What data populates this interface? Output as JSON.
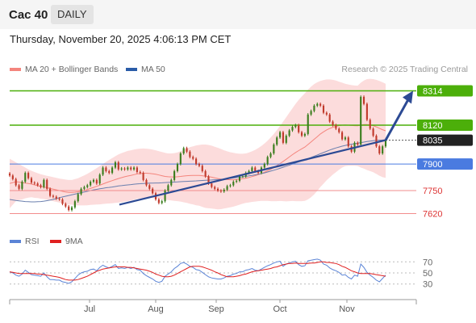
{
  "header": {
    "symbol": "Cac 40",
    "period": "DAILY"
  },
  "datetime": "Thursday, November 20, 2025 4:06:13 PM CET",
  "legend": {
    "ma_bb": {
      "label": "MA 20 + Bollinger Bands",
      "color": "#f4857d"
    },
    "ma50": {
      "label": "MA 50",
      "color": "#2a5ca8"
    },
    "credit": "Research © 2025 Trading Central"
  },
  "rsi_legend": {
    "rsi": {
      "label": "RSI",
      "color": "#5b84d6"
    },
    "ma9": {
      "label": "9MA",
      "color": "#e02020"
    }
  },
  "colors": {
    "resistance": "#4caf0a",
    "support": "#4a7be0",
    "minor_support": "#f28c8c",
    "current": "#222222",
    "trendline": "#2c4a94",
    "bollinger_fill": "#fcdcdc",
    "candle_up": "#3a7d1d",
    "candle_down": "#c0392b"
  },
  "chart_data": [
    {
      "type": "candlestick",
      "x_ticks": [
        "Jul",
        "Aug",
        "Sep",
        "Oct",
        "Nov"
      ],
      "ylim": [
        7540,
        8380
      ],
      "levels": [
        {
          "value": 8314,
          "label": "8314",
          "kind": "resistance"
        },
        {
          "value": 8120,
          "label": "8120",
          "kind": "resistance"
        },
        {
          "value": 8035,
          "label": "8035",
          "kind": "current"
        },
        {
          "value": 7900,
          "label": "7900",
          "kind": "support"
        },
        {
          "value": 7750,
          "label": "7750",
          "kind": "minor_support"
        },
        {
          "value": 7620,
          "label": "7620",
          "kind": "minor_support"
        }
      ],
      "closes": [
        7835,
        7815,
        7780,
        7760,
        7800,
        7850,
        7820,
        7795,
        7790,
        7780,
        7770,
        7810,
        7760,
        7720,
        7715,
        7705,
        7700,
        7675,
        7660,
        7640,
        7655,
        7690,
        7730,
        7760,
        7770,
        7780,
        7800,
        7810,
        7790,
        7840,
        7880,
        7860,
        7850,
        7880,
        7910,
        7870,
        7875,
        7870,
        7880,
        7870,
        7880,
        7855,
        7850,
        7810,
        7780,
        7760,
        7735,
        7700,
        7680,
        7690,
        7750,
        7780,
        7810,
        7860,
        7900,
        7960,
        7990,
        7970,
        7940,
        7930,
        7900,
        7890,
        7860,
        7830,
        7790,
        7770,
        7760,
        7750,
        7745,
        7755,
        7775,
        7780,
        7800,
        7805,
        7830,
        7830,
        7850,
        7860,
        7880,
        7860,
        7850,
        7880,
        7900,
        7940,
        7960,
        8010,
        8050,
        8080,
        8020,
        8060,
        8090,
        8110,
        8120,
        8080,
        8060,
        8070,
        8180,
        8200,
        8230,
        8240,
        8230,
        8190,
        8180,
        8140,
        8120,
        8100,
        8080,
        8040,
        8050,
        8000,
        7970,
        8020,
        8010,
        8280,
        8240,
        8150,
        8100,
        8060,
        8000,
        7960,
        8000,
        8035
      ],
      "ma20": [
        7790,
        7795,
        7800,
        7798,
        7795,
        7793,
        7790,
        7787,
        7782,
        7778,
        7773,
        7770,
        7766,
        7762,
        7758,
        7754,
        7750,
        7746,
        7742,
        7740,
        7740,
        7741,
        7743,
        7747,
        7751,
        7756,
        7762,
        7768,
        7774,
        7780,
        7787,
        7794,
        7800,
        7806,
        7812,
        7818,
        7823,
        7828,
        7832,
        7836,
        7840,
        7844,
        7846,
        7848,
        7848,
        7847,
        7845,
        7842,
        7838,
        7834,
        7830,
        7828,
        7827,
        7827,
        7828,
        7830,
        7832,
        7834,
        7835,
        7836,
        7836,
        7836,
        7834,
        7831,
        7829,
        7826,
        7822,
        7818,
        7815,
        7813,
        7812,
        7811,
        7811,
        7812,
        7814,
        7817,
        7820,
        7824,
        7829,
        7834,
        7840,
        7847,
        7854,
        7862,
        7870,
        7880,
        7891,
        7903,
        7915,
        7927,
        7940,
        7953,
        7965,
        7976,
        7986,
        7996,
        8010,
        8025,
        8040,
        8055,
        8070,
        8082,
        8093,
        8101,
        8108,
        8113,
        8117,
        8120,
        8121,
        8120,
        8118,
        8117,
        8116,
        8120,
        8123,
        8123,
        8121,
        8117,
        8110,
        8102,
        8094,
        8088
      ],
      "bb_upper": [
        7930,
        7920,
        7910,
        7900,
        7890,
        7880,
        7870,
        7862,
        7855,
        7848,
        7842,
        7838,
        7833,
        7830,
        7826,
        7822,
        7818,
        7815,
        7812,
        7810,
        7810,
        7815,
        7820,
        7828,
        7836,
        7845,
        7855,
        7866,
        7877,
        7888,
        7900,
        7912,
        7923,
        7934,
        7944,
        7954,
        7962,
        7968,
        7974,
        7978,
        7982,
        7985,
        7987,
        7988,
        7987,
        7985,
        7982,
        7978,
        7973,
        7968,
        7963,
        7960,
        7960,
        7962,
        7966,
        7972,
        7980,
        7988,
        7995,
        8000,
        8005,
        8008,
        8010,
        8010,
        8008,
        8004,
        7998,
        7992,
        7985,
        7978,
        7972,
        7967,
        7963,
        7960,
        7958,
        7958,
        7960,
        7965,
        7972,
        7980,
        7990,
        8002,
        8016,
        8032,
        8050,
        8070,
        8092,
        8115,
        8140,
        8165,
        8190,
        8215,
        8240,
        8262,
        8282,
        8300,
        8320,
        8338,
        8352,
        8362,
        8370,
        8375,
        8378,
        8378,
        8376,
        8372,
        8366,
        8360,
        8354,
        8350,
        8346,
        8344,
        8343,
        8360,
        8372,
        8380,
        8382,
        8380,
        8376,
        8370,
        8362,
        8354
      ],
      "bb_lower": [
        7650,
        7670,
        7690,
        7696,
        7700,
        7706,
        7710,
        7712,
        7709,
        7708,
        7704,
        7702,
        7699,
        7694,
        7690,
        7686,
        7682,
        7677,
        7672,
        7670,
        7670,
        7667,
        7666,
        7666,
        7666,
        7667,
        7669,
        7670,
        7671,
        7672,
        7674,
        7676,
        7677,
        7678,
        7680,
        7682,
        7684,
        7688,
        7690,
        7694,
        7698,
        7703,
        7705,
        7708,
        7709,
        7709,
        7708,
        7706,
        7703,
        7700,
        7697,
        7696,
        7694,
        7692,
        7690,
        7688,
        7684,
        7680,
        7675,
        7672,
        7667,
        7664,
        7658,
        7652,
        7650,
        7648,
        7646,
        7644,
        7645,
        7648,
        7652,
        7655,
        7659,
        7664,
        7670,
        7676,
        7680,
        7683,
        7686,
        7688,
        7690,
        7692,
        7692,
        7692,
        7690,
        7690,
        7690,
        7691,
        7690,
        7689,
        7690,
        7691,
        7690,
        7690,
        7690,
        7692,
        7700,
        7712,
        7728,
        7748,
        7770,
        7789,
        7808,
        7824,
        7840,
        7854,
        7868,
        7880,
        7888,
        7890,
        7890,
        7890,
        7889,
        7880,
        7874,
        7866,
        7860,
        7854,
        7844,
        7834,
        7826,
        7822
      ],
      "ma50": [
        7700,
        7697,
        7694,
        7692,
        7690,
        7688,
        7687,
        7686,
        7686,
        7687,
        7688,
        7690,
        7693,
        7696,
        7700,
        7705,
        7710,
        7714,
        7718,
        7722,
        7726,
        7730,
        7734,
        7738,
        7742,
        7746,
        7750,
        7754,
        7757,
        7760,
        7763,
        7766,
        7768,
        7770,
        7773,
        7776,
        7778,
        7780,
        7782,
        7784,
        7786,
        7788,
        7789,
        7790,
        7791,
        7792,
        7792,
        7793,
        7793,
        7794,
        7795,
        7796,
        7797,
        7798,
        7799,
        7800,
        7801,
        7802,
        7803,
        7804,
        7805,
        7806,
        7807,
        7808,
        7809,
        7810,
        7811,
        7812,
        7813,
        7815,
        7817,
        7819,
        7821,
        7823,
        7825,
        7828,
        7830,
        7833,
        7836,
        7839,
        7842,
        7846,
        7850,
        7855,
        7860,
        7865,
        7870,
        7876,
        7882,
        7888,
        7894,
        7900,
        7906,
        7912,
        7918,
        7924,
        7930,
        7937,
        7944,
        7951,
        7958,
        7965,
        7972,
        7979,
        7985,
        7991,
        7996,
        8001,
        8005,
        8009,
        8012,
        8015,
        8018,
        8021,
        8024,
        8027,
        8030,
        8032,
        8034,
        8035,
        8036,
        8037
      ],
      "trendline": {
        "from": {
          "index": 0,
          "value": 7520
        },
        "to": {
          "index": 121,
          "value": 8035
        }
      },
      "projection": {
        "from_value": 8035,
        "to_value": 8314
      }
    },
    {
      "type": "line",
      "name": "RSI",
      "ylim": [
        15,
        85
      ],
      "y_ticks": [
        70,
        50,
        30
      ],
      "x_ticks": [
        "Jul",
        "Aug",
        "Sep",
        "Oct",
        "Nov"
      ],
      "series": [
        {
          "name": "RSI",
          "values": [
            52,
            50,
            46,
            44,
            48,
            55,
            51,
            47,
            46,
            45,
            44,
            50,
            43,
            38,
            38,
            37,
            37,
            34,
            33,
            31,
            34,
            40,
            46,
            50,
            52,
            53,
            56,
            57,
            54,
            60,
            64,
            61,
            59,
            62,
            65,
            58,
            59,
            58,
            60,
            58,
            60,
            56,
            55,
            49,
            45,
            42,
            39,
            35,
            33,
            35,
            44,
            48,
            52,
            58,
            62,
            67,
            69,
            66,
            62,
            60,
            56,
            55,
            51,
            47,
            43,
            41,
            40,
            39,
            39,
            41,
            44,
            45,
            48,
            49,
            52,
            52,
            55,
            56,
            58,
            55,
            54,
            57,
            60,
            63,
            65,
            68,
            70,
            71,
            62,
            66,
            68,
            70,
            71,
            65,
            62,
            63,
            72,
            73,
            74,
            75,
            73,
            66,
            64,
            59,
            56,
            54,
            51,
            46,
            47,
            42,
            39,
            46,
            44,
            66,
            60,
            51,
            46,
            42,
            37,
            34,
            40,
            46
          ]
        },
        {
          "name": "9MA",
          "values": [
            52,
            51,
            50,
            49,
            49,
            49,
            49,
            49,
            49,
            48,
            48,
            47,
            46,
            45,
            44,
            43,
            42,
            40,
            38,
            37,
            37,
            37,
            38,
            40,
            42,
            44,
            47,
            50,
            53,
            55,
            57,
            58,
            59,
            60,
            61,
            61,
            61,
            61,
            60,
            60,
            59,
            58,
            57,
            56,
            55,
            53,
            51,
            48,
            46,
            44,
            43,
            43,
            44,
            46,
            49,
            52,
            55,
            58,
            61,
            62,
            62,
            62,
            61,
            59,
            57,
            55,
            52,
            50,
            47,
            45,
            43,
            43,
            43,
            44,
            45,
            47,
            48,
            50,
            52,
            53,
            54,
            55,
            56,
            57,
            58,
            60,
            61,
            63,
            65,
            66,
            67,
            67,
            68,
            67,
            67,
            67,
            67,
            68,
            68,
            69,
            70,
            70,
            69,
            69,
            68,
            67,
            65,
            62,
            60,
            57,
            54,
            52,
            50,
            49,
            49,
            49,
            49,
            48,
            47,
            46,
            45,
            44
          ]
        }
      ]
    }
  ]
}
